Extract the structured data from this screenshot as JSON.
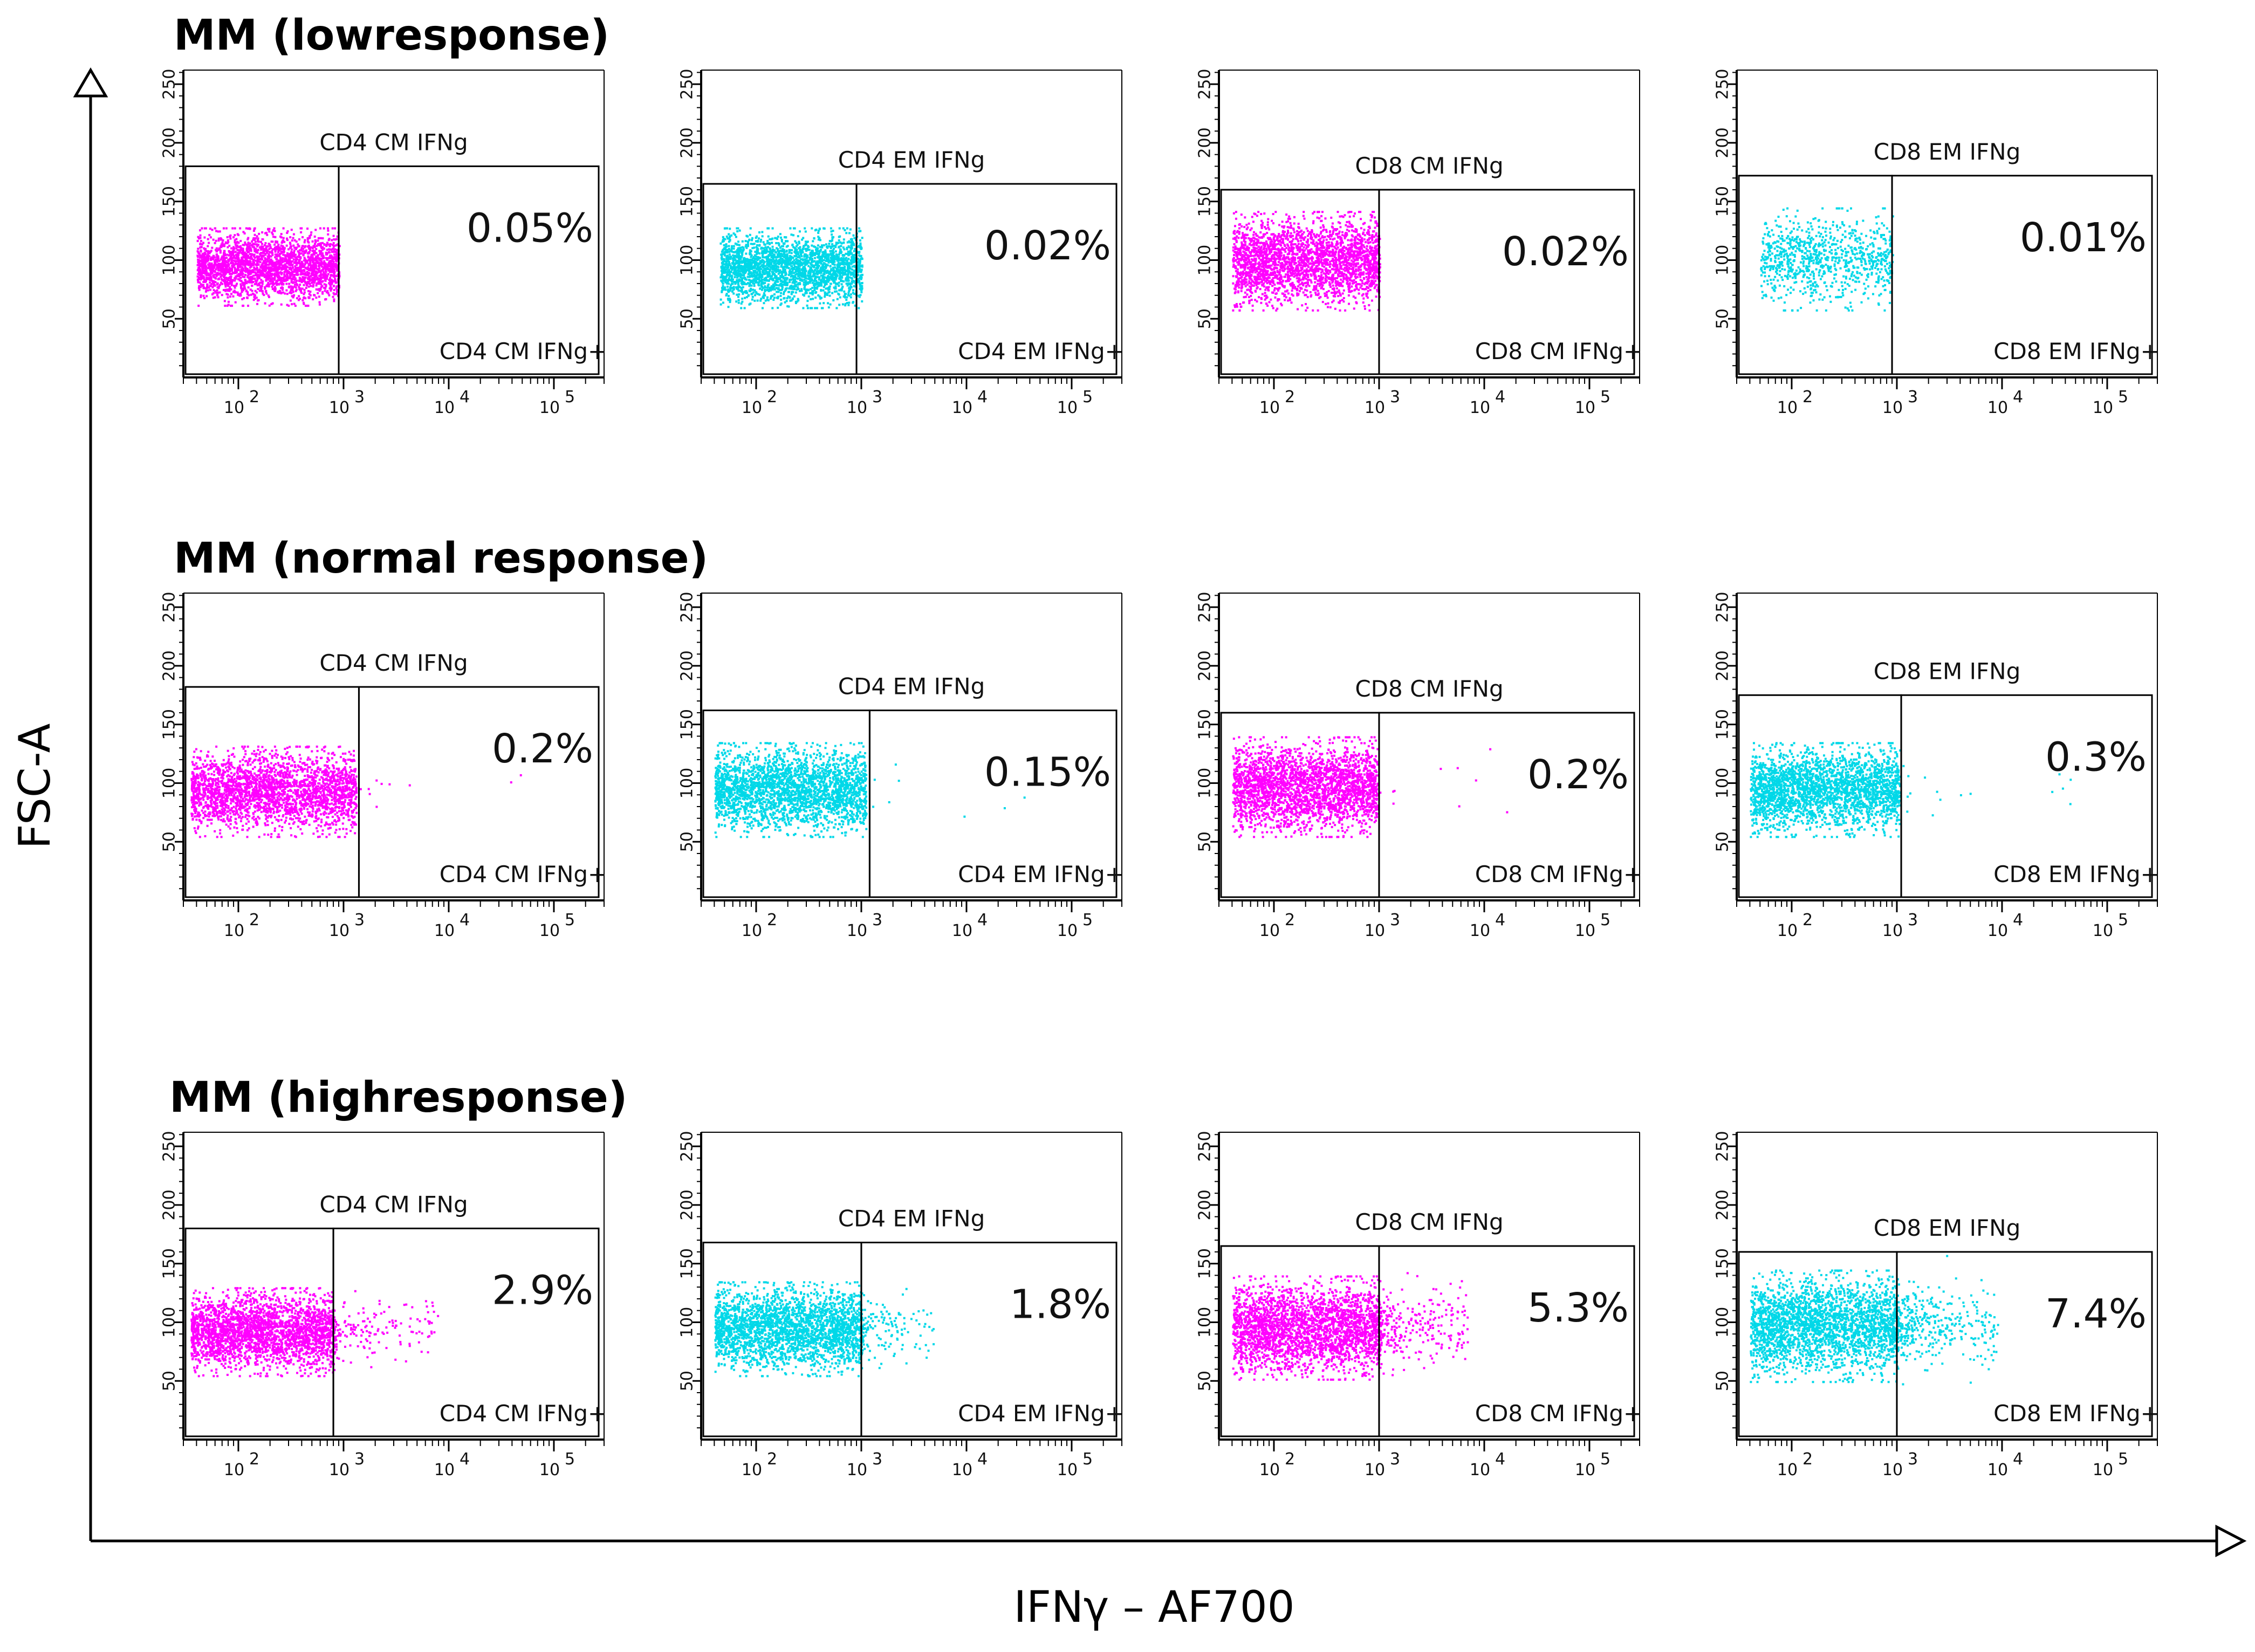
{
  "chart_data": {
    "type": "scatter",
    "description_axes": {
      "xlabel": "IFNγ – AF700",
      "ylabel": "FSC-A"
    },
    "x_scale": "log",
    "xlim": [
      30,
      300000
    ],
    "ylim": [
      0,
      262
    ],
    "x_ticks": [
      {
        "value": 100,
        "base": "10",
        "exp": "2"
      },
      {
        "value": 1000,
        "base": "10",
        "exp": "3"
      },
      {
        "value": 10000,
        "base": "10",
        "exp": "4"
      },
      {
        "value": 100000,
        "base": "10",
        "exp": "5"
      }
    ],
    "y_ticks": [
      "50",
      "100",
      "150",
      "200",
      "250"
    ],
    "y_tick_values": [
      50,
      100,
      150,
      200,
      250
    ],
    "colors": {
      "magenta": "#ff00ff",
      "cyan": "#00d8e8",
      "frame": "#000000"
    },
    "rows": [
      {
        "title": "MM (lowresponse)",
        "panels": [
          {
            "gate": "CD4 CM IFNg",
            "gate_pos": "CD4 CM IFNg+",
            "percent": "0.05%",
            "color": "magenta",
            "threshold": 900,
            "gate_y": [
              0,
              180
            ],
            "cloud_x": [
              40,
              900
            ],
            "cloud_y": [
              62,
              128
            ],
            "positive_fraction": 0.0
          },
          {
            "gate": "CD4 EM IFNg",
            "gate_pos": "CD4 EM IFNg+",
            "percent": "0.02%",
            "color": "cyan",
            "threshold": 900,
            "gate_y": [
              0,
              165
            ],
            "cloud_x": [
              45,
              1000
            ],
            "cloud_y": [
              60,
              128
            ],
            "positive_fraction": 0.0
          },
          {
            "gate": "CD8 CM IFNg",
            "gate_pos": "CD8 CM IFNg+",
            "percent": "0.02%",
            "color": "magenta",
            "threshold": 1000,
            "gate_y": [
              0,
              160
            ],
            "cloud_x": [
              40,
              1000
            ],
            "cloud_y": [
              58,
              142
            ],
            "positive_fraction": 0.0
          },
          {
            "gate": "CD8 EM IFNg",
            "gate_pos": "CD8 EM IFNg+",
            "percent": "0.01%",
            "color": "cyan",
            "threshold": 900,
            "gate_y": [
              0,
              172
            ],
            "cloud_x": [
              50,
              900
            ],
            "cloud_y": [
              58,
              145
            ],
            "positive_fraction": 0.0
          }
        ]
      },
      {
        "title": "MM (normal response)",
        "panels": [
          {
            "gate": "CD4 CM IFNg",
            "gate_pos": "CD4 CM IFNg+",
            "percent": "0.2%",
            "color": "magenta",
            "threshold": 1400,
            "gate_y": [
              0,
              182
            ],
            "cloud_x": [
              35,
              1300
            ],
            "cloud_y": [
              55,
              132
            ],
            "positive_fraction": 0.004
          },
          {
            "gate": "CD4 EM IFNg",
            "gate_pos": "CD4 EM IFNg+",
            "percent": "0.15%",
            "color": "cyan",
            "threshold": 1200,
            "gate_y": [
              0,
              162
            ],
            "cloud_x": [
              40,
              1100
            ],
            "cloud_y": [
              55,
              135
            ],
            "positive_fraction": 0.003
          },
          {
            "gate": "CD8 CM IFNg",
            "gate_pos": "CD8 CM IFNg+",
            "percent": "0.2%",
            "color": "magenta",
            "threshold": 1000,
            "gate_y": [
              0,
              160
            ],
            "cloud_x": [
              40,
              950
            ],
            "cloud_y": [
              55,
              140
            ],
            "positive_fraction": 0.004
          },
          {
            "gate": "CD8 EM IFNg",
            "gate_pos": "CD8 EM IFNg+",
            "percent": "0.3%",
            "color": "cyan",
            "threshold": 1100,
            "gate_y": [
              0,
              175
            ],
            "cloud_x": [
              40,
              1050
            ],
            "cloud_y": [
              55,
              135
            ],
            "positive_fraction": 0.006
          }
        ]
      },
      {
        "title": "MM (highresponse)",
        "panels": [
          {
            "gate": "CD4 CM IFNg",
            "gate_pos": "CD4 CM IFNg+",
            "percent": "2.9%",
            "color": "magenta",
            "threshold": 800,
            "gate_y": [
              0,
              180
            ],
            "cloud_x": [
              35,
              800
            ],
            "cloud_y": [
              55,
              130
            ],
            "positive_fraction": 0.06,
            "positive_xmax": 8000
          },
          {
            "gate": "CD4 EM IFNg",
            "gate_pos": "CD4 EM IFNg+",
            "percent": "1.8%",
            "color": "cyan",
            "threshold": 1000,
            "gate_y": [
              0,
              168
            ],
            "cloud_x": [
              40,
              1000
            ],
            "cloud_y": [
              55,
              135
            ],
            "positive_fraction": 0.05,
            "positive_xmax": 5000
          },
          {
            "gate": "CD8 CM IFNg",
            "gate_pos": "CD8 CM IFNg+",
            "percent": "5.3%",
            "color": "magenta",
            "threshold": 1000,
            "gate_y": [
              0,
              165
            ],
            "cloud_x": [
              40,
              1000
            ],
            "cloud_y": [
              52,
              140
            ],
            "positive_fraction": 0.1,
            "positive_xmax": 7000
          },
          {
            "gate": "CD8 EM IFNg",
            "gate_pos": "CD8 EM IFNg+",
            "percent": "7.4%",
            "color": "cyan",
            "threshold": 1000,
            "gate_y": [
              0,
              160
            ],
            "cloud_x": [
              40,
              1000
            ],
            "cloud_y": [
              50,
              145
            ],
            "positive_fraction": 0.14,
            "positive_xmax": 9000
          }
        ]
      }
    ]
  }
}
